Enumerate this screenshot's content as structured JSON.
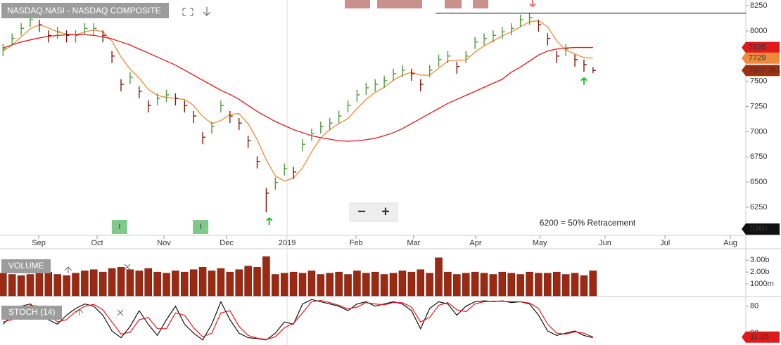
{
  "controls": {
    "zoom_out": "−",
    "zoom_in": "+"
  },
  "chart_data": [
    {
      "type": "ohlc",
      "title": "NASDAQ.NASI - NASDAQ COMPOSITE",
      "x": [
        1,
        4,
        7,
        10,
        13,
        16,
        19,
        22,
        25,
        28,
        31,
        34,
        37,
        40,
        43,
        46,
        49,
        52,
        55,
        58,
        61,
        64,
        67,
        70,
        73,
        76,
        79,
        82,
        85,
        88,
        91,
        94,
        97,
        100,
        103,
        106,
        109,
        112,
        115,
        118,
        121,
        124,
        127,
        130,
        133,
        136,
        139,
        142,
        145,
        148,
        151,
        154,
        157,
        160,
        163,
        166,
        169,
        172,
        175,
        178,
        181,
        184,
        187,
        190,
        193,
        196
      ],
      "xlim": [
        0,
        246.5
      ],
      "xticks": [
        {
          "value": 12.8,
          "label": "Sep"
        },
        {
          "value": 32.1,
          "label": "Oct"
        },
        {
          "value": 54.2,
          "label": "Nov"
        },
        {
          "value": 74.9,
          "label": "Dec"
        },
        {
          "value": 94.9,
          "label": "2019"
        },
        {
          "value": 117.7,
          "label": "Feb"
        },
        {
          "value": 136.7,
          "label": "Mar"
        },
        {
          "value": 157.2,
          "label": "Apr"
        },
        {
          "value": 178.4,
          "label": "May"
        },
        {
          "value": 200,
          "label": "Jun"
        },
        {
          "value": 219.8,
          "label": "Jul"
        },
        {
          "value": 241.4,
          "label": "Aug"
        }
      ],
      "ylim": [
        5971,
        8306
      ],
      "yticks": [
        6250,
        6500,
        6750,
        7000,
        7250,
        7500,
        7750,
        8000,
        8250
      ],
      "up_color": "#4c9a3c",
      "down_color": "#7a1a0c",
      "values": [
        7820,
        7925,
        8025,
        8110,
        8060,
        7955,
        7990,
        7955,
        7955,
        8025,
        8025,
        7955,
        7750,
        7470,
        7540,
        7400,
        7260,
        7330,
        7365,
        7330,
        7260,
        7155,
        6945,
        7050,
        7260,
        7155,
        7085,
        6910,
        6705,
        6390,
        6495,
        6635,
        6600,
        6875,
        6980,
        7050,
        7085,
        7155,
        7260,
        7365,
        7435,
        7470,
        7505,
        7575,
        7610,
        7575,
        7470,
        7610,
        7715,
        7750,
        7645,
        7750,
        7890,
        7925,
        7955,
        7990,
        8025,
        8110,
        8130,
        8060,
        7925,
        7750,
        7820,
        7715,
        7665,
        7607.351
      ],
      "high": [
        7870,
        7975,
        8075,
        8160,
        8110,
        8005,
        8040,
        8005,
        8005,
        8075,
        8075,
        8005,
        7800,
        7520,
        7590,
        7450,
        7310,
        7380,
        7415,
        7380,
        7310,
        7205,
        6995,
        7100,
        7310,
        7205,
        7135,
        6960,
        6755,
        6440,
        6545,
        6685,
        6650,
        6925,
        7030,
        7100,
        7135,
        7205,
        7310,
        7415,
        7485,
        7520,
        7555,
        7625,
        7660,
        7625,
        7520,
        7660,
        7765,
        7800,
        7695,
        7800,
        7940,
        7975,
        8005,
        8040,
        8075,
        8160,
        8180,
        8110,
        7975,
        7800,
        7870,
        7765,
        7715,
        7640
      ],
      "low": [
        7750,
        7855,
        7955,
        8040,
        7990,
        7885,
        7920,
        7885,
        7885,
        7955,
        7955,
        7885,
        7680,
        7400,
        7470,
        7330,
        7190,
        7260,
        7295,
        7260,
        7190,
        7085,
        6875,
        6980,
        7190,
        7085,
        7015,
        6840,
        6635,
        6200,
        6425,
        6565,
        6530,
        6805,
        6910,
        6980,
        7015,
        7085,
        7190,
        7295,
        7365,
        7400,
        7435,
        7505,
        7540,
        7505,
        7400,
        7540,
        7645,
        7680,
        7575,
        7680,
        7820,
        7855,
        7885,
        7920,
        7955,
        8040,
        8060,
        7990,
        7855,
        7680,
        7750,
        7645,
        7595,
        7580
      ],
      "last_color": "#a0300f",
      "overlays": [
        {
          "color": "#f08a3a",
          "values": [
            7800,
            7860,
            7940,
            8020,
            8060,
            8030,
            7990,
            7970,
            7960,
            7990,
            8010,
            7990,
            7900,
            7740,
            7620,
            7530,
            7420,
            7360,
            7340,
            7330,
            7320,
            7260,
            7150,
            7080,
            7110,
            7170,
            7180,
            7080,
            6920,
            6720,
            6560,
            6510,
            6540,
            6640,
            6800,
            6940,
            7020,
            7080,
            7130,
            7230,
            7320,
            7390,
            7440,
            7510,
            7560,
            7590,
            7560,
            7560,
            7630,
            7700,
            7710,
            7710,
            7790,
            7850,
            7900,
            7950,
            7990,
            8040,
            8090,
            8100,
            8040,
            7900,
            7810,
            7770,
            7735,
            7729
          ]
        },
        {
          "color": "#e0191b",
          "values": [
            7830,
            7860,
            7890,
            7910,
            7930,
            7945,
            7955,
            7960,
            7962,
            7962,
            7955,
            7940,
            7920,
            7890,
            7860,
            7820,
            7780,
            7740,
            7700,
            7660,
            7610,
            7560,
            7510,
            7460,
            7410,
            7370,
            7320,
            7260,
            7200,
            7150,
            7100,
            7060,
            7020,
            6990,
            6960,
            6940,
            6925,
            6910,
            6905,
            6910,
            6920,
            6935,
            6960,
            6990,
            7030,
            7080,
            7130,
            7180,
            7230,
            7280,
            7320,
            7360,
            7400,
            7440,
            7480,
            7520,
            7590,
            7640,
            7700,
            7760,
            7800,
            7820,
            7830,
            7835,
            7835,
            7835
          ]
        }
      ],
      "hline": 8175,
      "hline_from": 144,
      "annotation": "6200 = 50% Retracement",
      "price_axis_note": "5260",
      "signals": [
        {
          "x": 89,
          "y": 6110,
          "color": "#22c02a",
          "direction": "up"
        },
        {
          "x": 193,
          "y": 7500,
          "color": "#22c02a",
          "direction": "up"
        },
        {
          "x": 176,
          "y": 8275,
          "color": "#e8706a",
          "direction": "down"
        }
      ],
      "events": [
        {
          "x": 39.5,
          "label": "I"
        },
        {
          "x": 66.3,
          "label": "I"
        }
      ]
    },
    {
      "type": "bar",
      "title": "VOLUME",
      "color": "#9c2a12",
      "values": [
        1.9,
        1.8,
        1.7,
        1.8,
        1.9,
        2.0,
        1.8,
        1.7,
        1.9,
        2.1,
        2.2,
        2.0,
        2.3,
        2.4,
        2.2,
        2.1,
        2.3,
        2.0,
        1.9,
        2.1,
        2.0,
        2.2,
        2.4,
        2.1,
        2.3,
        2.0,
        2.2,
        2.5,
        2.4,
        3.3,
        1.8,
        1.9,
        2.0,
        1.9,
        2.1,
        1.8,
        1.9,
        2.0,
        1.8,
        2.1,
        1.9,
        2.0,
        1.8,
        1.9,
        2.1,
        2.0,
        2.2,
        1.9,
        3.2,
        2.0,
        1.8,
        1.9,
        2.0,
        1.9,
        1.8,
        2.0,
        1.9,
        1.8,
        2.0,
        1.9,
        1.9,
        2.0,
        1.8,
        1.9,
        1.7,
        2.1
      ],
      "ylim": [
        0,
        3.9
      ],
      "yticks": [
        {
          "value": 1,
          "label": "1000m"
        },
        {
          "value": 2,
          "label": "2.00b"
        },
        {
          "value": 3,
          "label": "3.00b"
        }
      ]
    },
    {
      "type": "line",
      "title": "STOCH (14)",
      "ylim": [
        0,
        100
      ],
      "yticks": [
        20,
        80
      ],
      "series": [
        {
          "color": "#111111",
          "values": [
            40,
            60,
            80,
            85,
            70,
            50,
            40,
            60,
            75,
            85,
            80,
            60,
            25,
            10,
            35,
            70,
            40,
            15,
            50,
            80,
            40,
            20,
            5,
            40,
            90,
            50,
            20,
            10,
            8,
            5,
            20,
            45,
            40,
            85,
            95,
            90,
            85,
            80,
            70,
            85,
            90,
            80,
            85,
            90,
            85,
            70,
            30,
            75,
            90,
            85,
            60,
            80,
            90,
            92,
            90,
            92,
            88,
            90,
            85,
            60,
            25,
            15,
            20,
            25,
            15,
            10
          ]
        },
        {
          "color": "#e0191b",
          "values": [
            45,
            50,
            70,
            82,
            80,
            62,
            45,
            50,
            68,
            80,
            84,
            72,
            45,
            18,
            22,
            50,
            55,
            30,
            30,
            65,
            60,
            32,
            12,
            20,
            65,
            70,
            35,
            15,
            9,
            6,
            12,
            32,
            42,
            65,
            90,
            93,
            88,
            82,
            74,
            78,
            88,
            85,
            83,
            88,
            88,
            78,
            45,
            55,
            82,
            88,
            72,
            68,
            85,
            90,
            91,
            91,
            90,
            90,
            87,
            75,
            40,
            20,
            18,
            23,
            20,
            11.25
          ]
        }
      ]
    }
  ]
}
